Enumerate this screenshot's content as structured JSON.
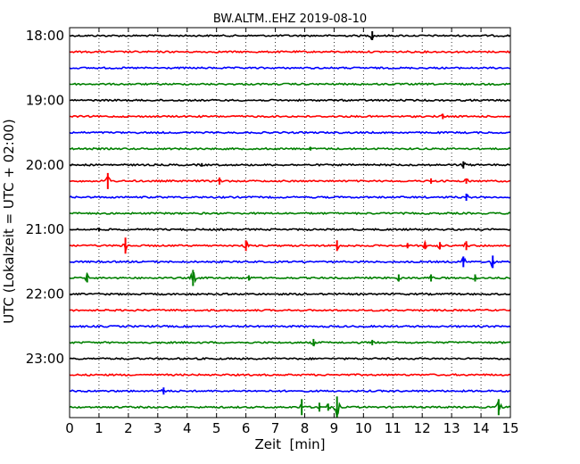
{
  "chart_data": {
    "type": "line",
    "title": "BW.ALTM..EHZ 2019-08-10",
    "xlabel": "Zeit  [min]",
    "ylabel": "UTC (Lokalzeit = UTC + 02:00)",
    "xlim": [
      0,
      15
    ],
    "x_ticks": [
      "0",
      "1",
      "2",
      "3",
      "4",
      "5",
      "6",
      "7",
      "8",
      "9",
      "10",
      "11",
      "12",
      "13",
      "14",
      "15"
    ],
    "y_tick_labels": [
      "18:00",
      "19:00",
      "20:00",
      "21:00",
      "22:00",
      "23:00"
    ],
    "grid": "vertical dotted",
    "trace_colors": [
      "#000000",
      "#ff0000",
      "#0000ff",
      "#008000"
    ],
    "traces": [
      {
        "start": "18:00",
        "events": [
          {
            "t": 10.3,
            "a": 5
          }
        ]
      },
      {
        "start": "18:15",
        "events": []
      },
      {
        "start": "18:30",
        "events": []
      },
      {
        "start": "18:45",
        "events": []
      },
      {
        "start": "19:00",
        "events": []
      },
      {
        "start": "19:15",
        "events": [
          {
            "t": 12.7,
            "a": 3
          }
        ]
      },
      {
        "start": "19:30",
        "events": []
      },
      {
        "start": "19:45",
        "events": [
          {
            "t": 8.2,
            "a": 2
          }
        ]
      },
      {
        "start": "20:00",
        "events": [
          {
            "t": 4.5,
            "a": 2
          },
          {
            "t": 13.4,
            "a": 4
          }
        ]
      },
      {
        "start": "20:15",
        "events": [
          {
            "t": 1.3,
            "a": 9
          },
          {
            "t": 5.1,
            "a": 4
          },
          {
            "t": 12.3,
            "a": 3
          },
          {
            "t": 13.5,
            "a": 3
          }
        ]
      },
      {
        "start": "20:30",
        "events": [
          {
            "t": 13.5,
            "a": 4
          }
        ]
      },
      {
        "start": "20:45",
        "events": []
      },
      {
        "start": "21:00",
        "events": [
          {
            "t": 1.0,
            "a": 2
          }
        ]
      },
      {
        "start": "21:15",
        "events": [
          {
            "t": 1.9,
            "a": 9
          },
          {
            "t": 6.0,
            "a": 6
          },
          {
            "t": 9.1,
            "a": 6
          },
          {
            "t": 11.5,
            "a": 3
          },
          {
            "t": 12.1,
            "a": 4
          },
          {
            "t": 12.6,
            "a": 4
          },
          {
            "t": 13.5,
            "a": 5
          }
        ]
      },
      {
        "start": "21:30",
        "events": [
          {
            "t": 13.4,
            "a": 6
          },
          {
            "t": 14.4,
            "a": 7
          }
        ]
      },
      {
        "start": "21:45",
        "events": [
          {
            "t": 0.6,
            "a": 5
          },
          {
            "t": 4.2,
            "a": 9
          },
          {
            "t": 6.1,
            "a": 3
          },
          {
            "t": 11.2,
            "a": 4
          },
          {
            "t": 12.3,
            "a": 4
          },
          {
            "t": 13.8,
            "a": 4
          }
        ]
      },
      {
        "start": "22:00",
        "events": []
      },
      {
        "start": "22:15",
        "events": []
      },
      {
        "start": "22:30",
        "events": []
      },
      {
        "start": "22:45",
        "events": [
          {
            "t": 8.3,
            "a": 4
          },
          {
            "t": 10.3,
            "a": 3
          }
        ]
      },
      {
        "start": "23:00",
        "events": []
      },
      {
        "start": "23:15",
        "events": []
      },
      {
        "start": "23:30",
        "events": [
          {
            "t": 3.2,
            "a": 4
          }
        ]
      },
      {
        "start": "23:45",
        "events": [
          {
            "t": 7.9,
            "a": 9
          },
          {
            "t": 8.5,
            "a": 5
          },
          {
            "t": 8.8,
            "a": 4
          },
          {
            "t": 9.1,
            "a": 12
          },
          {
            "t": 14.6,
            "a": 9
          }
        ]
      }
    ]
  }
}
